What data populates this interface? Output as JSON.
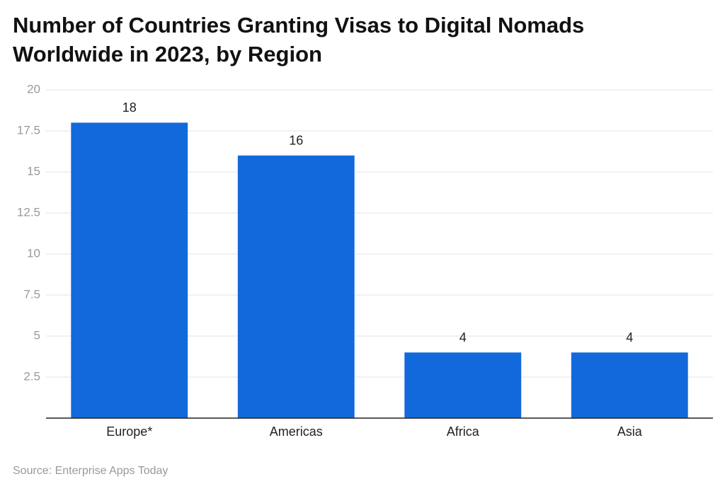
{
  "chart_data": {
    "type": "bar",
    "title": "Number of Countries Granting Visas to Digital Nomads",
    "subtitle": "Worldwide in 2023, by Region",
    "categories": [
      "Europe*",
      "Americas",
      "Africa",
      "Asia"
    ],
    "values": [
      18,
      16,
      4,
      4
    ],
    "color": "#1269db",
    "ylim": [
      0,
      20
    ],
    "yticks": [
      2.5,
      5,
      7.5,
      10,
      12.5,
      15,
      17.5,
      20
    ],
    "grid": true,
    "source": "Source: Enterprise Apps Today"
  }
}
